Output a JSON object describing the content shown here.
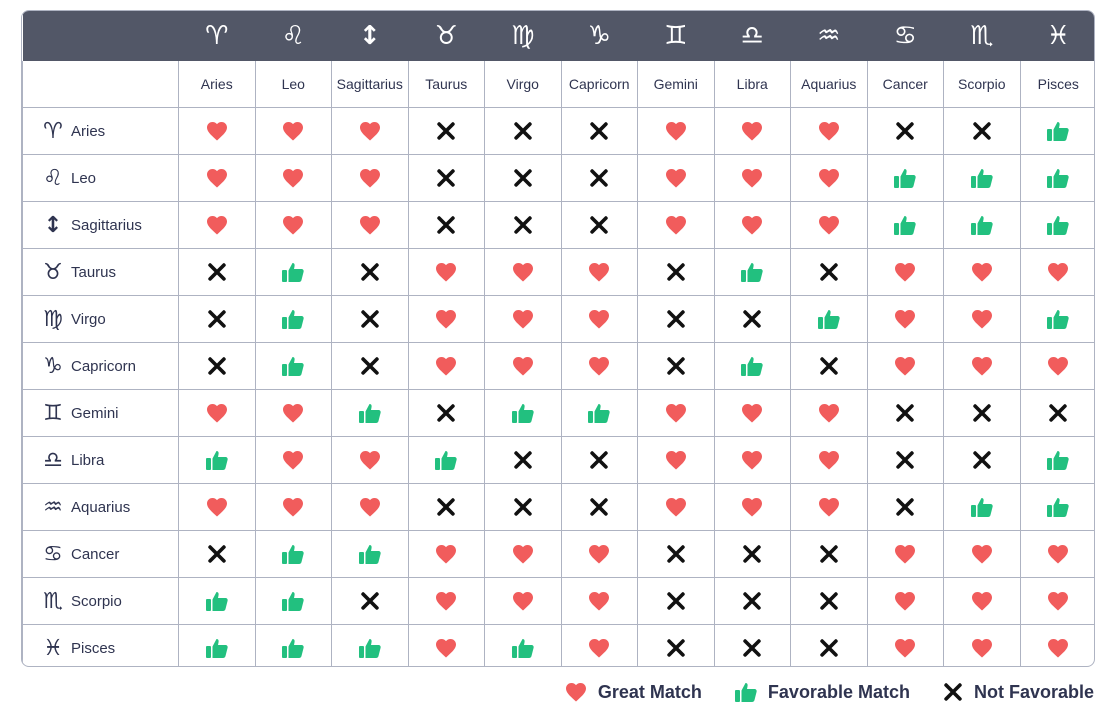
{
  "signs": [
    {
      "symbol": "♈",
      "name": "Aries"
    },
    {
      "symbol": "♌",
      "name": "Leo"
    },
    {
      "symbol": "↕",
      "name": "Sagittarius"
    },
    {
      "symbol": "♉",
      "name": "Taurus"
    },
    {
      "symbol": "♍",
      "name": "Virgo"
    },
    {
      "symbol": "♑",
      "name": "Capricorn"
    },
    {
      "symbol": "♊",
      "name": "Gemini"
    },
    {
      "symbol": "♎",
      "name": "Libra"
    },
    {
      "symbol": "♒",
      "name": "Aquarius"
    },
    {
      "symbol": "♋",
      "name": "Cancer"
    },
    {
      "symbol": "♏",
      "name": "Scorpio"
    },
    {
      "symbol": "♓",
      "name": "Pisces"
    }
  ],
  "matrix": [
    [
      "H",
      "H",
      "H",
      "X",
      "X",
      "X",
      "H",
      "H",
      "H",
      "X",
      "X",
      "T"
    ],
    [
      "H",
      "H",
      "H",
      "X",
      "X",
      "X",
      "H",
      "H",
      "H",
      "T",
      "T",
      "T"
    ],
    [
      "H",
      "H",
      "H",
      "X",
      "X",
      "X",
      "H",
      "H",
      "H",
      "T",
      "T",
      "T"
    ],
    [
      "X",
      "T",
      "X",
      "H",
      "H",
      "H",
      "X",
      "T",
      "X",
      "H",
      "H",
      "H"
    ],
    [
      "X",
      "T",
      "X",
      "H",
      "H",
      "H",
      "X",
      "X",
      "T",
      "H",
      "H",
      "T"
    ],
    [
      "X",
      "T",
      "X",
      "H",
      "H",
      "H",
      "X",
      "T",
      "X",
      "H",
      "H",
      "H"
    ],
    [
      "H",
      "H",
      "T",
      "X",
      "T",
      "T",
      "H",
      "H",
      "H",
      "X",
      "X",
      "X"
    ],
    [
      "T",
      "H",
      "H",
      "T",
      "X",
      "X",
      "H",
      "H",
      "H",
      "X",
      "X",
      "T"
    ],
    [
      "H",
      "H",
      "H",
      "X",
      "X",
      "X",
      "H",
      "H",
      "H",
      "X",
      "T",
      "T"
    ],
    [
      "X",
      "T",
      "T",
      "H",
      "H",
      "H",
      "X",
      "X",
      "X",
      "H",
      "H",
      "H"
    ],
    [
      "T",
      "T",
      "X",
      "H",
      "H",
      "H",
      "X",
      "X",
      "X",
      "H",
      "H",
      "H"
    ],
    [
      "T",
      "T",
      "T",
      "H",
      "T",
      "H",
      "X",
      "X",
      "X",
      "H",
      "H",
      "H"
    ]
  ],
  "icon_key": {
    "H": "heart-icon",
    "T": "thumbs-up-icon",
    "X": "x-mark-icon"
  },
  "colors": {
    "heart": "#f15c5c",
    "thumb": "#22c07f",
    "x": "#111111",
    "header": "#525767"
  },
  "legend": {
    "great_match": "Great Match",
    "favorable_match": "Favorable Match",
    "not_favorable": "Not Favorable"
  }
}
